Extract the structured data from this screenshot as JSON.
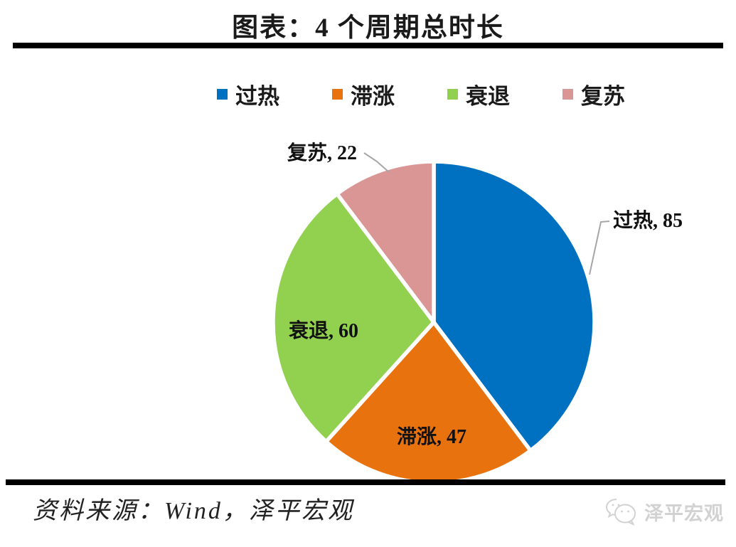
{
  "chart_data": {
    "type": "pie",
    "title": "图表：4 个周期总时长",
    "total": 214,
    "start_angle_deg": 0,
    "direction": "clockwise",
    "legend_position": "top",
    "slices": [
      {
        "name": "过热",
        "value": 85,
        "label": "过热, 85",
        "color": "#0070C0"
      },
      {
        "name": "滞涨",
        "value": 47,
        "label": "滞涨, 47",
        "color": "#E8720E"
      },
      {
        "name": "衰退",
        "value": 60,
        "label": "衰退, 60",
        "color": "#92D050"
      },
      {
        "name": "复苏",
        "value": 22,
        "label": "复苏, 22",
        "color": "#D99694"
      }
    ]
  },
  "footer": {
    "source": "资料来源：Wind，泽平宏观",
    "watermark": "泽平宏观"
  },
  "colors": {
    "rule": "#000000",
    "leader_line": "#A6A6A6",
    "slice_gap": "#FFFFFF",
    "watermark": "#D2D2D2"
  }
}
